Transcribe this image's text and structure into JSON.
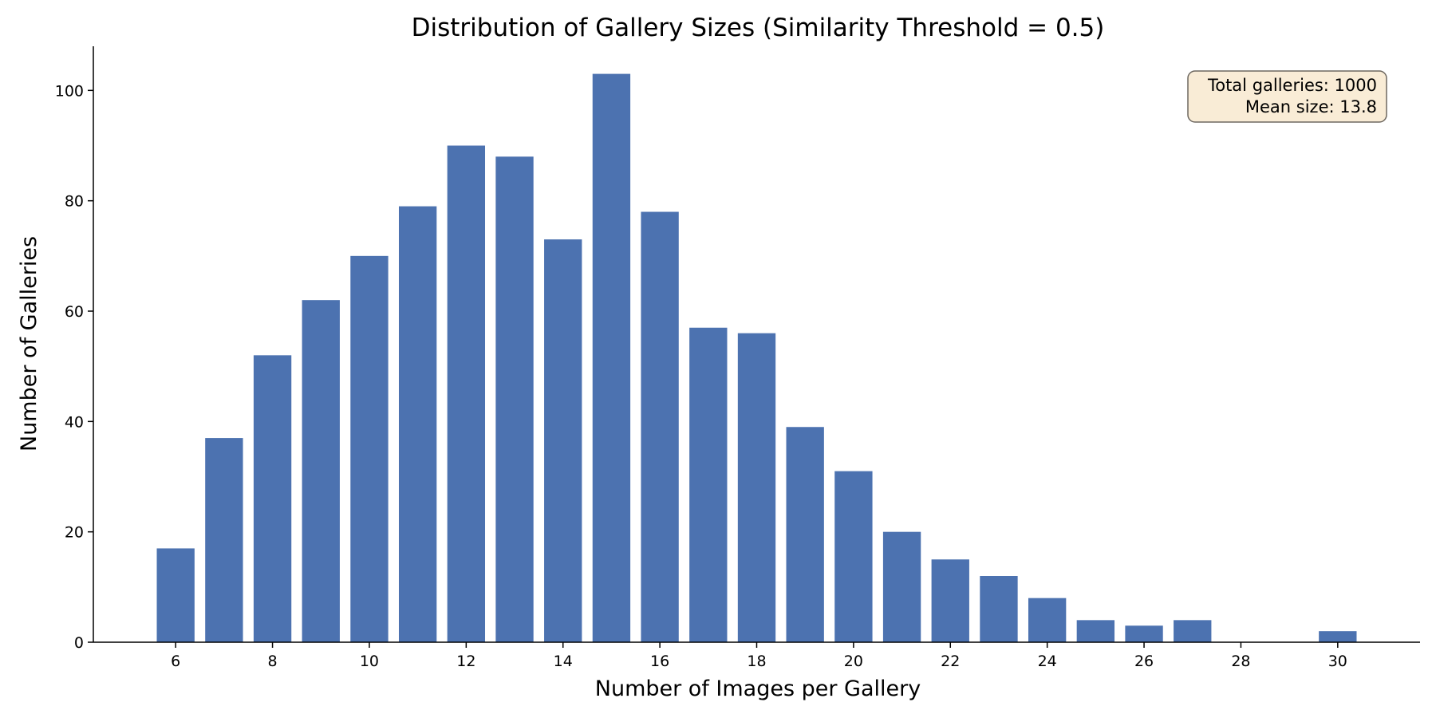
{
  "chart_data": {
    "type": "bar",
    "title": "Distribution of Gallery Sizes (Similarity Threshold = 0.5)",
    "xlabel": "Number of Images per Gallery",
    "ylabel": "Number of Galleries",
    "x": [
      6,
      7,
      8,
      9,
      10,
      11,
      12,
      13,
      14,
      15,
      16,
      17,
      18,
      19,
      20,
      21,
      22,
      23,
      24,
      25,
      26,
      27,
      30
    ],
    "values": [
      17,
      37,
      52,
      62,
      70,
      79,
      90,
      88,
      73,
      103,
      78,
      57,
      56,
      39,
      31,
      20,
      15,
      12,
      8,
      4,
      3,
      4,
      2
    ],
    "xlim": [
      4.3,
      31.7
    ],
    "ylim": [
      0,
      108
    ],
    "xticks": [
      6,
      8,
      10,
      12,
      14,
      16,
      18,
      20,
      22,
      24,
      26,
      28,
      30
    ],
    "yticks": [
      0,
      20,
      40,
      60,
      80,
      100
    ],
    "grid": false,
    "bar_color": "#4c72b0",
    "annotation": {
      "lines": [
        "Total galleries: 1000",
        "Mean size: 13.8"
      ],
      "placement": "top-right",
      "box_color": "#f9ecd6"
    }
  }
}
